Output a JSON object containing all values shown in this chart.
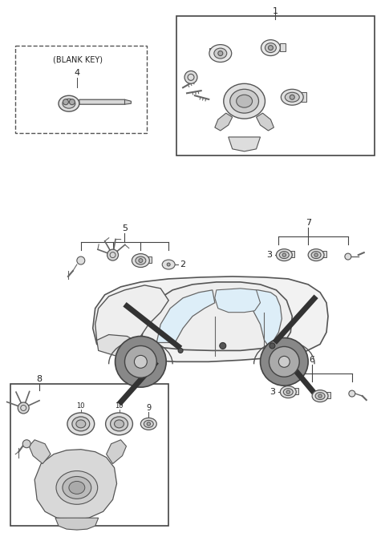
{
  "bg_color": "#ffffff",
  "fig_width": 4.8,
  "fig_height": 6.7,
  "dpi": 100,
  "line_color": "#444444",
  "text_color": "#222222"
}
